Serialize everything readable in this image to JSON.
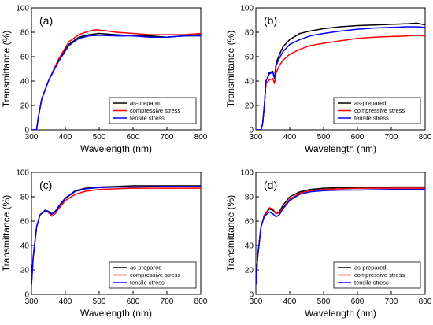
{
  "colors": {
    "as_prepared": "#000000",
    "compressive": "#ff0000",
    "tensile": "#0000ff"
  },
  "chart_data": [
    {
      "type": "line",
      "panel_label": "(a)",
      "xlabel": "Wavelength (nm)",
      "ylabel": "Transmittance (%)",
      "xlim": [
        300,
        800
      ],
      "ylim": [
        0,
        100
      ],
      "xticks": [
        300,
        400,
        500,
        600,
        700,
        800
      ],
      "yticks": [
        0,
        20,
        40,
        60,
        80,
        100
      ],
      "legend_position": "bottom-right",
      "series": [
        {
          "name": "as-prepared",
          "color": "#000000",
          "x": [
            300,
            315,
            320,
            330,
            350,
            380,
            410,
            440,
            470,
            500,
            550,
            600,
            650,
            700,
            750,
            800
          ],
          "y": [
            0,
            0,
            10,
            25,
            40,
            57,
            70,
            76,
            78,
            79,
            78,
            77,
            77,
            76,
            77,
            78
          ]
        },
        {
          "name": "compressive stress",
          "color": "#ff0000",
          "x": [
            300,
            315,
            320,
            330,
            350,
            380,
            410,
            440,
            470,
            490,
            510,
            550,
            600,
            650,
            700,
            750,
            800
          ],
          "y": [
            0,
            0,
            10,
            25,
            40,
            58,
            72,
            78,
            81,
            82,
            81.5,
            80,
            79,
            78,
            78,
            78,
            79
          ]
        },
        {
          "name": "tensile stress",
          "color": "#0000ff",
          "x": [
            300,
            315,
            320,
            330,
            350,
            380,
            410,
            440,
            470,
            500,
            550,
            600,
            650,
            700,
            750,
            800
          ],
          "y": [
            0,
            0,
            10,
            25,
            40,
            56,
            69,
            75,
            77,
            77.5,
            77,
            77,
            76,
            76,
            77,
            77
          ]
        }
      ]
    },
    {
      "type": "line",
      "panel_label": "(b)",
      "xlabel": "Wavelength (nm)",
      "ylabel": "Transmittance (%)",
      "xlim": [
        300,
        800
      ],
      "ylim": [
        0,
        100
      ],
      "xticks": [
        300,
        400,
        500,
        600,
        700,
        800
      ],
      "yticks": [
        0,
        20,
        40,
        60,
        80,
        100
      ],
      "legend_position": "bottom-right",
      "series": [
        {
          "name": "as-prepared",
          "color": "#000000",
          "x": [
            300,
            315,
            320,
            325,
            330,
            340,
            350,
            355,
            360,
            370,
            380,
            400,
            430,
            460,
            500,
            550,
            600,
            650,
            700,
            750,
            775,
            800
          ],
          "y": [
            0,
            0,
            5,
            20,
            40,
            47,
            48,
            42,
            55,
            62,
            68,
            74,
            79,
            81,
            83,
            84.5,
            85.5,
            86,
            86.5,
            87,
            87.5,
            86
          ]
        },
        {
          "name": "compressive stress",
          "color": "#ff0000",
          "x": [
            300,
            315,
            320,
            325,
            330,
            340,
            350,
            355,
            360,
            370,
            380,
            400,
            430,
            460,
            500,
            550,
            600,
            650,
            700,
            750,
            775,
            800
          ],
          "y": [
            0,
            0,
            5,
            20,
            38,
            41,
            42,
            38,
            47,
            53,
            57,
            62,
            66,
            69,
            71,
            73,
            75,
            76,
            76.5,
            77,
            77.5,
            77
          ]
        },
        {
          "name": "tensile stress",
          "color": "#0000ff",
          "x": [
            300,
            315,
            320,
            325,
            330,
            340,
            350,
            355,
            360,
            370,
            380,
            400,
            430,
            460,
            500,
            550,
            600,
            650,
            700,
            750,
            775,
            800
          ],
          "y": [
            0,
            0,
            5,
            20,
            40,
            46,
            47,
            43,
            53,
            59,
            64,
            70,
            74,
            77,
            79,
            81,
            82.5,
            83.5,
            84,
            84.5,
            84.5,
            84
          ]
        }
      ]
    },
    {
      "type": "line",
      "panel_label": "(c)",
      "xlabel": "Wavelength (nm)",
      "ylabel": "Transmittance (%)",
      "xlim": [
        300,
        800
      ],
      "ylim": [
        0,
        100
      ],
      "xticks": [
        300,
        400,
        500,
        600,
        700,
        800
      ],
      "yticks": [
        0,
        20,
        40,
        60,
        80,
        100
      ],
      "legend_position": "bottom-right",
      "series": [
        {
          "name": "as-prepared",
          "color": "#000000",
          "x": [
            300,
            305,
            315,
            325,
            340,
            350,
            360,
            370,
            380,
            400,
            430,
            460,
            500,
            550,
            600,
            700,
            800
          ],
          "y": [
            8,
            30,
            55,
            65,
            69,
            68,
            66,
            68,
            72,
            79,
            85,
            87,
            88,
            88.5,
            89,
            89,
            89
          ]
        },
        {
          "name": "compressive stress",
          "color": "#ff0000",
          "x": [
            300,
            305,
            315,
            325,
            340,
            350,
            360,
            370,
            380,
            400,
            430,
            460,
            500,
            550,
            600,
            700,
            800
          ],
          "y": [
            8,
            30,
            55,
            65,
            68.5,
            67,
            64,
            66,
            70,
            77,
            82,
            84.5,
            86,
            86.5,
            87,
            87,
            87
          ]
        },
        {
          "name": "tensile stress",
          "color": "#0000ff",
          "x": [
            300,
            305,
            315,
            325,
            340,
            350,
            360,
            370,
            380,
            400,
            430,
            460,
            500,
            550,
            600,
            700,
            800
          ],
          "y": [
            8,
            30,
            55,
            65,
            68.5,
            67.5,
            65.5,
            67.5,
            71.5,
            78.5,
            84.5,
            86.5,
            87.5,
            88,
            88,
            88.5,
            88.5
          ]
        }
      ]
    },
    {
      "type": "line",
      "panel_label": "(d)",
      "xlabel": "Wavelength (nm)",
      "ylabel": "Transmittance (%)",
      "xlim": [
        300,
        800
      ],
      "ylim": [
        0,
        100
      ],
      "xticks": [
        300,
        400,
        500,
        600,
        700,
        800
      ],
      "yticks": [
        0,
        20,
        40,
        60,
        80,
        100
      ],
      "legend_position": "bottom-right",
      "series": [
        {
          "name": "as-prepared",
          "color": "#000000",
          "x": [
            300,
            305,
            315,
            325,
            340,
            350,
            360,
            370,
            380,
            400,
            430,
            460,
            500,
            550,
            600,
            700,
            800
          ],
          "y": [
            8,
            30,
            55,
            65,
            70,
            69,
            66,
            68,
            73,
            80,
            84,
            86,
            87,
            87.5,
            87.5,
            88,
            88
          ]
        },
        {
          "name": "compressive stress",
          "color": "#ff0000",
          "x": [
            300,
            305,
            315,
            325,
            340,
            350,
            360,
            370,
            380,
            400,
            430,
            460,
            500,
            550,
            600,
            700,
            800
          ],
          "y": [
            8,
            30,
            55,
            65,
            71,
            70,
            66,
            67,
            71,
            78,
            83,
            85,
            86,
            86.5,
            87,
            87,
            87
          ]
        },
        {
          "name": "tensile stress",
          "color": "#0000ff",
          "x": [
            300,
            305,
            315,
            325,
            340,
            350,
            360,
            370,
            380,
            400,
            430,
            460,
            500,
            550,
            600,
            700,
            800
          ],
          "y": [
            8,
            30,
            55,
            64,
            67.5,
            66,
            63.5,
            65.5,
            70,
            77,
            82,
            84,
            85,
            85.5,
            85.5,
            86,
            86
          ]
        }
      ]
    }
  ]
}
